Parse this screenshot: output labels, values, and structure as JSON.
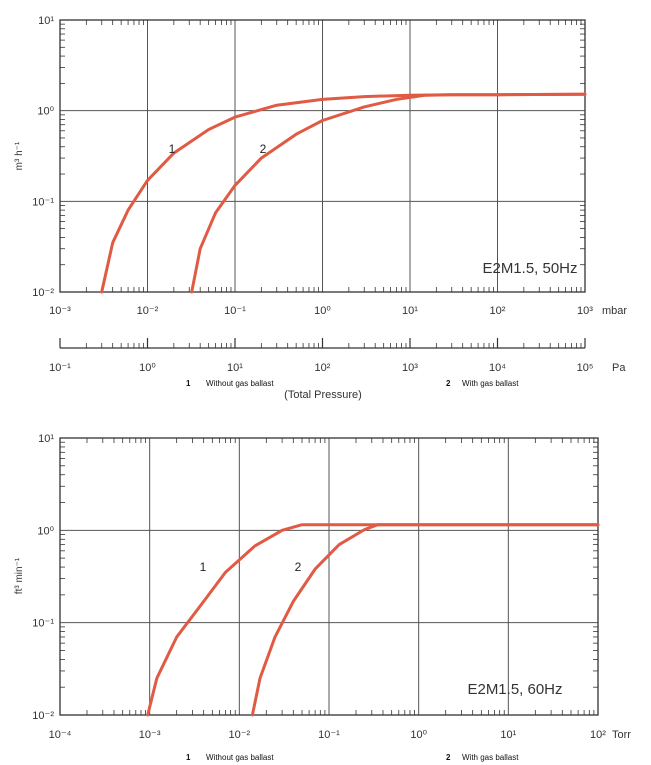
{
  "chart_data": [
    {
      "type": "line",
      "model": "E2M1.5, 50Hz",
      "ylabel": "m³ h⁻¹",
      "x_scale": "log",
      "y_scale": "log",
      "xlim": [
        0.001,
        1000
      ],
      "ylim": [
        0.01,
        10
      ],
      "grid": true,
      "x_ticks": [
        "10⁻³",
        "10⁻²",
        "10⁻¹",
        "10⁰",
        "10¹",
        "10²",
        "10³"
      ],
      "y_ticks": [
        "10⁻²",
        "10⁻¹",
        "10⁰",
        "10¹"
      ],
      "x_unit": "mbar",
      "secondary_axis": {
        "ticks": [
          "10⁻¹",
          "10⁰",
          "10¹",
          "10²",
          "10³",
          "10⁴",
          "10⁵"
        ],
        "unit": "Pa",
        "caption": "(Total Pressure)"
      },
      "series": [
        {
          "name": "1",
          "color": "#e05a44",
          "points": [
            [
              0.003,
              0.01
            ],
            [
              0.004,
              0.035
            ],
            [
              0.006,
              0.08
            ],
            [
              0.01,
              0.17
            ],
            [
              0.02,
              0.34
            ],
            [
              0.05,
              0.62
            ],
            [
              0.1,
              0.85
            ],
            [
              0.3,
              1.15
            ],
            [
              1,
              1.33
            ],
            [
              3,
              1.43
            ],
            [
              10,
              1.48
            ],
            [
              30,
              1.5
            ],
            [
              100,
              1.5
            ],
            [
              1000,
              1.52
            ]
          ]
        },
        {
          "name": "2",
          "color": "#e05a44",
          "points": [
            [
              0.032,
              0.01
            ],
            [
              0.04,
              0.03
            ],
            [
              0.06,
              0.075
            ],
            [
              0.1,
              0.15
            ],
            [
              0.2,
              0.3
            ],
            [
              0.5,
              0.55
            ],
            [
              1,
              0.78
            ],
            [
              3,
              1.1
            ],
            [
              7,
              1.33
            ],
            [
              15,
              1.48
            ],
            [
              30,
              1.5
            ],
            [
              100,
              1.5
            ],
            [
              1000,
              1.52
            ]
          ]
        }
      ],
      "legend": [
        {
          "num": "1",
          "text": "Without gas ballast"
        },
        {
          "num": "2",
          "text": "With gas ballast"
        }
      ]
    },
    {
      "type": "line",
      "model": "E2M1.5,  60Hz",
      "ylabel": "ft³ min⁻¹",
      "x_scale": "log",
      "y_scale": "log",
      "xlim": [
        0.0001,
        100
      ],
      "ylim": [
        0.01,
        10
      ],
      "grid": true,
      "x_ticks": [
        "10⁻⁴",
        "10⁻³",
        "10⁻²",
        "10⁻¹",
        "10⁰",
        "10¹",
        "10²"
      ],
      "y_ticks": [
        "10⁻²",
        "10⁻¹",
        "10⁰",
        "10¹"
      ],
      "x_unit": "Torr",
      "series": [
        {
          "name": "1",
          "color": "#e05a44",
          "points": [
            [
              0.00095,
              0.01
            ],
            [
              0.0012,
              0.025
            ],
            [
              0.002,
              0.07
            ],
            [
              0.004,
              0.17
            ],
            [
              0.007,
              0.35
            ],
            [
              0.015,
              0.68
            ],
            [
              0.03,
              1.0
            ],
            [
              0.05,
              1.15
            ],
            [
              0.1,
              1.15
            ],
            [
              1,
              1.15
            ],
            [
              100,
              1.15
            ]
          ]
        },
        {
          "name": "2",
          "color": "#e05a44",
          "points": [
            [
              0.014,
              0.01
            ],
            [
              0.017,
              0.025
            ],
            [
              0.025,
              0.07
            ],
            [
              0.04,
              0.17
            ],
            [
              0.07,
              0.38
            ],
            [
              0.13,
              0.7
            ],
            [
              0.25,
              1.02
            ],
            [
              0.35,
              1.15
            ],
            [
              1,
              1.15
            ],
            [
              100,
              1.15
            ]
          ]
        }
      ],
      "legend": [
        {
          "num": "1",
          "text": "Without gas ballast"
        },
        {
          "num": "2",
          "text": "With gas ballast"
        }
      ]
    }
  ]
}
